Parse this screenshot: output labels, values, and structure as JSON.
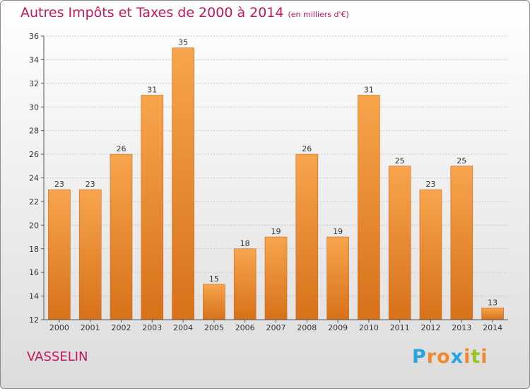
{
  "chart_data": {
    "type": "bar",
    "title": "Autres Impôts et Taxes de 2000 à 2014",
    "unit": "(en milliers d'€)",
    "categories": [
      "2000",
      "2001",
      "2002",
      "2003",
      "2004",
      "2005",
      "2006",
      "2007",
      "2008",
      "2009",
      "2010",
      "2011",
      "2012",
      "2013",
      "2014"
    ],
    "values": [
      23,
      23,
      26,
      31,
      35,
      15,
      18,
      19,
      26,
      19,
      31,
      25,
      23,
      25,
      13
    ],
    "ylim": [
      12,
      36
    ],
    "yticks": [
      12,
      14,
      16,
      18,
      20,
      22,
      24,
      26,
      28,
      30,
      32,
      34,
      36
    ],
    "grid": true,
    "bar_color": "#f08a2c",
    "xlabel": "",
    "ylabel": ""
  },
  "commune": "VASSELIN",
  "logo": {
    "letters": [
      "P",
      "r",
      "o",
      "x",
      "i",
      "t",
      "i"
    ],
    "colors": [
      "#2aa3df",
      "#f08a2c",
      "#f08a2c",
      "#2aa3df",
      "#f08a2c",
      "#9ac31c",
      "#f08a2c"
    ]
  }
}
